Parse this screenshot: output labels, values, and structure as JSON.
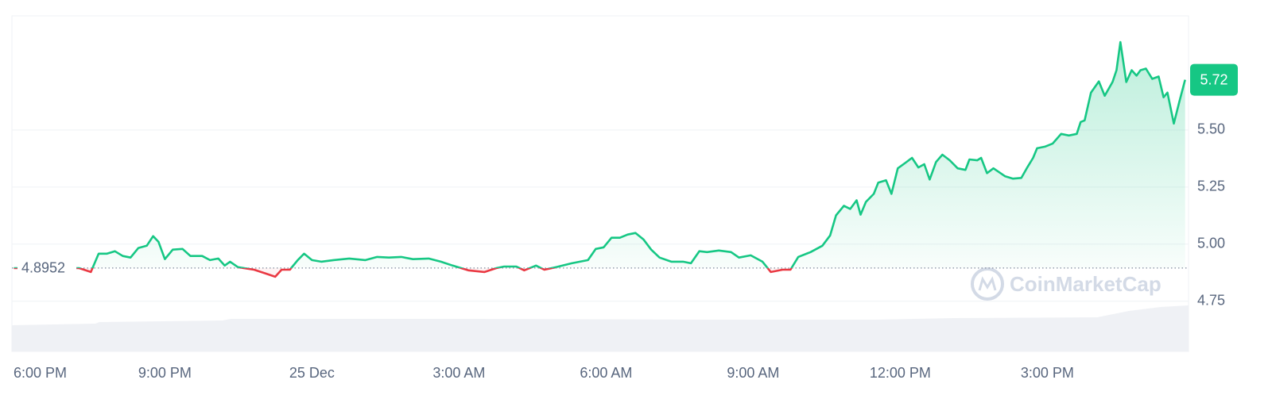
{
  "chart_data": {
    "type": "line",
    "x": [
      -0.08,
      1.25,
      1.49,
      1.65,
      1.82,
      1.98,
      2.14,
      2.3,
      2.46,
      2.63,
      2.76,
      2.87,
      3.0,
      3.16,
      3.36,
      3.52,
      3.76,
      3.92,
      4.09,
      4.22,
      4.33,
      4.49,
      4.82,
      5.06,
      5.25,
      5.38,
      5.55,
      5.71,
      5.84,
      6.0,
      6.19,
      6.44,
      6.76,
      7.09,
      7.33,
      7.57,
      7.82,
      8.06,
      8.38,
      8.63,
      8.87,
      9.19,
      9.52,
      9.76,
      9.92,
      10.17,
      10.33,
      10.57,
      10.74,
      10.98,
      11.3,
      11.63,
      11.79,
      11.95,
      12.11,
      12.28,
      12.44,
      12.6,
      12.76,
      12.92,
      13.09,
      13.33,
      13.57,
      13.73,
      13.9,
      14.06,
      14.3,
      14.55,
      14.71,
      14.95,
      15.19,
      15.36,
      15.6,
      15.76,
      15.92,
      16.17,
      16.41,
      16.57,
      16.69,
      16.85,
      16.98,
      17.11,
      17.19,
      17.3,
      17.46,
      17.55,
      17.71,
      17.82,
      17.95,
      18.11,
      18.24,
      18.37,
      18.49,
      18.6,
      18.73,
      18.86,
      19.01,
      19.17,
      19.33,
      19.41,
      19.57,
      19.65,
      19.77,
      19.9,
      20.14,
      20.3,
      20.47,
      20.58,
      20.71,
      20.79,
      20.95,
      21.11,
      21.28,
      21.44,
      21.6,
      21.68,
      21.76,
      21.89,
      22.05,
      22.17,
      22.33,
      22.41,
      22.49,
      22.61,
      22.72,
      22.82,
      22.9,
      23.01,
      23.14,
      23.27,
      23.37,
      23.45,
      23.58,
      23.69,
      23.81
    ],
    "series": [
      {
        "color": "#16c784",
        "values": [
          4.895,
          4.895,
          4.878,
          4.958,
          4.958,
          4.969,
          4.948,
          4.941,
          4.983,
          4.993,
          5.035,
          5.01,
          4.934,
          4.976,
          4.979,
          4.948,
          4.948,
          4.93,
          4.937,
          4.906,
          4.923,
          4.899,
          4.888,
          4.871,
          4.857,
          4.888,
          4.888,
          4.93,
          4.958,
          4.93,
          4.923,
          4.93,
          4.937,
          4.93,
          4.944,
          4.941,
          4.944,
          4.934,
          4.937,
          4.923,
          4.906,
          4.885,
          4.878,
          4.895,
          4.902,
          4.902,
          4.885,
          4.906,
          4.888,
          4.899,
          4.916,
          4.93,
          4.979,
          4.986,
          5.028,
          5.028,
          5.042,
          5.049,
          5.021,
          4.976,
          4.941,
          4.923,
          4.923,
          4.916,
          4.969,
          4.965,
          4.972,
          4.965,
          4.941,
          4.951,
          4.923,
          4.878,
          4.888,
          4.888,
          4.944,
          4.965,
          4.993,
          5.038,
          5.126,
          5.168,
          5.154,
          5.192,
          5.129,
          5.185,
          5.22,
          5.269,
          5.28,
          5.22,
          5.332,
          5.357,
          5.378,
          5.336,
          5.35,
          5.283,
          5.36,
          5.392,
          5.367,
          5.332,
          5.325,
          5.371,
          5.367,
          5.378,
          5.311,
          5.332,
          5.297,
          5.287,
          5.29,
          5.332,
          5.378,
          5.42,
          5.427,
          5.441,
          5.483,
          5.476,
          5.483,
          5.535,
          5.542,
          5.664,
          5.713,
          5.65,
          5.71,
          5.762,
          5.885,
          5.71,
          5.762,
          5.738,
          5.762,
          5.769,
          5.724,
          5.734,
          5.643,
          5.664,
          5.528,
          5.622,
          5.72
        ]
      }
    ],
    "below_color": "#ea3943",
    "baseline": 4.8952,
    "current_price": 5.72,
    "xlim": [
      -0.12,
      23.88
    ],
    "ylim": [
      4.53,
      6.0
    ],
    "xticks": [
      {
        "value": 0,
        "label": "6:00 PM"
      },
      {
        "value": 3,
        "label": "9:00 PM"
      },
      {
        "value": 6,
        "label": "25 Dec"
      },
      {
        "value": 9,
        "label": "3:00 AM"
      },
      {
        "value": 12,
        "label": "6:00 AM"
      },
      {
        "value": 15,
        "label": "9:00 AM"
      },
      {
        "value": 18,
        "label": "12:00 PM"
      },
      {
        "value": 21,
        "label": "3:00 PM"
      }
    ],
    "yticks": [
      4.75,
      {
        "value": 5,
        "label": "5.00"
      },
      5.25,
      {
        "value": 5.5,
        "label": "5.50"
      }
    ],
    "grid": true,
    "watermark": "CoinMarketCap"
  }
}
